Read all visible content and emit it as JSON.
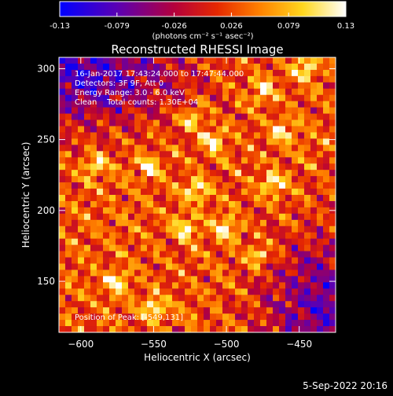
{
  "chart_data": {
    "type": "heatmap",
    "title": "Reconstructed RHESSI Image",
    "xlabel": "Heliocentric X (arcsec)",
    "ylabel": "Heliocentric Y (arcsec)",
    "xlim": [
      -615,
      -425
    ],
    "ylim": [
      114,
      308
    ],
    "x_ticks": [
      -600,
      -550,
      -500,
      -450
    ],
    "y_ticks": [
      150,
      200,
      250,
      300
    ],
    "colorbar": {
      "ticks": [
        "-0.13",
        "-0.079",
        "-0.026",
        "0.026",
        "0.079",
        "0.13"
      ],
      "range": [
        -0.13,
        0.13
      ],
      "unit_label": "(photons cm⁻² s⁻¹ asec⁻²)",
      "colormap": "blue-purple-red-orange-yellow-white"
    },
    "annotations": [
      "16-Jan-2017 17:43:24.000 to 17:47:44.000",
      "Detectors: 3F 9F, Att 0",
      "Energy Range: 3.0 - 6.0 keV",
      "Clean    Total counts: 1.30E+04"
    ],
    "peak_label": "Position of Peak: [-549,131]",
    "peak": [
      -549,
      131
    ],
    "bright_spots": [
      {
        "x": -553,
        "y": 231
      },
      {
        "x": -523,
        "y": 265
      },
      {
        "x": -462,
        "y": 256
      },
      {
        "x": -509,
        "y": 249
      },
      {
        "x": -528,
        "y": 187
      },
      {
        "x": -500,
        "y": 188
      },
      {
        "x": -468,
        "y": 218
      },
      {
        "x": -549,
        "y": 131
      },
      {
        "x": -575,
        "y": 150
      },
      {
        "x": -478,
        "y": 168
      },
      {
        "x": -590,
        "y": 232
      },
      {
        "x": -475,
        "y": 285
      },
      {
        "x": -520,
        "y": 215
      },
      {
        "x": -445,
        "y": 300
      }
    ],
    "grid": false,
    "footer_date": "5-Sep-2022 20:16"
  }
}
